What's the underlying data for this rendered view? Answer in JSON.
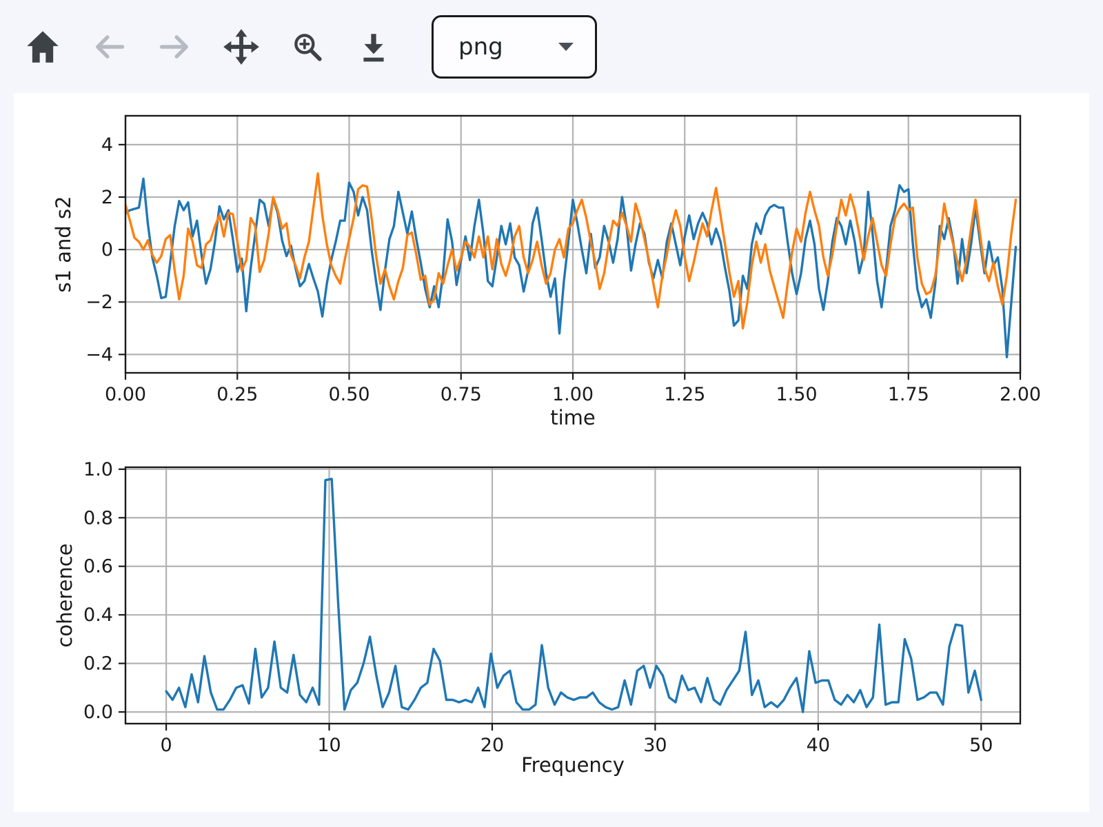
{
  "toolbar": {
    "buttons": [
      {
        "label": "Home",
        "icon": "home-icon",
        "disabled": false
      },
      {
        "label": "Back",
        "icon": "arrow-left-icon",
        "disabled": true
      },
      {
        "label": "Forward",
        "icon": "arrow-right-icon",
        "disabled": true
      },
      {
        "label": "Pan",
        "icon": "move-icon",
        "disabled": false
      },
      {
        "label": "Zoom",
        "icon": "zoom-in-icon",
        "disabled": false
      },
      {
        "label": "Download",
        "icon": "download-icon",
        "disabled": false
      }
    ],
    "format_select": {
      "value": "png"
    }
  },
  "colors": {
    "page_bg": "#f5f6fc",
    "figure_bg": "#ffffff",
    "grid": "#b3b3b3",
    "spine": "#1a1a1a",
    "text": "#1a1a1a",
    "s1": "#1f77b4",
    "s2": "#ff7f0e",
    "coherence": "#1f77b4",
    "icon": "#3d4246",
    "icon_disabled": "#b6bbc2"
  },
  "chart_data": [
    {
      "type": "line",
      "name": "signals-chart",
      "title": "",
      "xlabel": "time",
      "ylabel": "s1 and s2",
      "xlim": [
        0,
        2
      ],
      "ylim": [
        -4.7,
        5.1
      ],
      "grid": true,
      "xticks": [
        {
          "v": 0,
          "label": "0.00"
        },
        {
          "v": 0.25,
          "label": "0.25"
        },
        {
          "v": 0.5,
          "label": "0.50"
        },
        {
          "v": 0.75,
          "label": "0.75"
        },
        {
          "v": 1.0,
          "label": "1.00"
        },
        {
          "v": 1.25,
          "label": "1.25"
        },
        {
          "v": 1.5,
          "label": "1.50"
        },
        {
          "v": 1.75,
          "label": "1.75"
        },
        {
          "v": 2.0,
          "label": "2.00"
        }
      ],
      "yticks": [
        {
          "v": -4,
          "label": "−4"
        },
        {
          "v": -2,
          "label": "−2"
        },
        {
          "v": 0,
          "label": "0"
        },
        {
          "v": 2,
          "label": "2"
        },
        {
          "v": 4,
          "label": "4"
        }
      ],
      "series": [
        {
          "name": "s1",
          "color": "#1f77b4",
          "x_start": 0,
          "dx": 0.01,
          "values": [
            1.4,
            1.5,
            1.55,
            1.6,
            2.7,
            1.0,
            -0.3,
            -1.0,
            -1.85,
            -1.8,
            -0.5,
            0.9,
            1.85,
            1.5,
            1.8,
            0.5,
            1.1,
            -0.2,
            -1.3,
            -0.75,
            0.3,
            1.65,
            1.15,
            1.5,
            0.4,
            -0.85,
            -0.35,
            -2.35,
            -0.7,
            0.6,
            1.9,
            1.75,
            0.9,
            1.95,
            1.4,
            0.35,
            -0.25,
            0.15,
            -0.7,
            -1.4,
            -1.2,
            -0.55,
            -1.1,
            -1.6,
            -2.55,
            -1.3,
            -0.4,
            0.3,
            1.1,
            1.1,
            2.55,
            2.2,
            1.3,
            2.0,
            1.5,
            0.0,
            -1.2,
            -2.3,
            -0.8,
            0.4,
            0.9,
            2.2,
            1.4,
            0.6,
            1.45,
            0.4,
            -0.5,
            -1.5,
            -2.2,
            -1.4,
            -2.2,
            -0.9,
            1.15,
            0.3,
            -1.35,
            -0.4,
            0.5,
            -0.4,
            0.9,
            1.9,
            0.6,
            -1.2,
            -1.4,
            -0.3,
            0.9,
            0.2,
            1.0,
            -0.3,
            -0.6,
            -1.6,
            -0.8,
            1.0,
            1.6,
            0.4,
            -0.9,
            -1.8,
            -1.1,
            -3.2,
            -1.2,
            0.3,
            1.9,
            1.0,
            0.0,
            -0.9,
            0.6,
            -0.7,
            -0.3,
            0.9,
            0.3,
            -0.5,
            0.4,
            2.0,
            0.9,
            -0.8,
            0.2,
            1.0,
            0.6,
            -0.5,
            -1.1,
            -0.4,
            -1.1,
            0.3,
            1.0,
            0.2,
            -0.6,
            0.5,
            1.3,
            0.4,
            1.0,
            1.4,
            1.0,
            0.2,
            0.8,
            0.3,
            -0.7,
            -1.6,
            -2.9,
            -2.7,
            -1.0,
            -1.5,
            0.2,
            1.0,
            0.6,
            1.3,
            1.6,
            1.7,
            1.6,
            1.6,
            0.3,
            -0.9,
            -1.7,
            -0.9,
            0.4,
            1.1,
            0.2,
            -1.5,
            -2.3,
            -1.2,
            0.3,
            1.2,
            0.9,
            0.2,
            1.1,
            0.3,
            -0.9,
            -0.2,
            2.2,
            0.6,
            -1.2,
            -2.2,
            -0.8,
            0.9,
            1.5,
            2.45,
            2.2,
            2.3,
            0.2,
            -1.5,
            -2.2,
            -1.9,
            -2.6,
            -1.3,
            0.9,
            0.4,
            1.2,
            0.3,
            -1.3,
            0.4,
            -0.9,
            0.2,
            1.6,
            0.3,
            -0.9,
            0.3,
            -0.6,
            -0.3,
            -1.5,
            -4.1,
            -2.0,
            0.1
          ]
        },
        {
          "name": "s2",
          "color": "#ff7f0e",
          "x_start": 0,
          "dx": 0.01,
          "values": [
            1.7,
            1.1,
            0.45,
            0.3,
            0.0,
            0.35,
            -0.2,
            -0.5,
            -0.25,
            0.4,
            0.55,
            -0.8,
            -1.9,
            -1.0,
            0.8,
            0.3,
            -0.6,
            -0.7,
            0.2,
            0.35,
            0.9,
            1.3,
            0.5,
            1.4,
            1.35,
            0.3,
            -0.8,
            -0.4,
            1.2,
            0.9,
            -0.85,
            -0.4,
            0.6,
            2.0,
            1.5,
            0.8,
            1.0,
            -0.2,
            -0.6,
            -1.1,
            -0.3,
            0.3,
            1.6,
            2.9,
            1.3,
            0.2,
            -0.6,
            -1.0,
            -1.3,
            -0.4,
            0.4,
            1.2,
            2.3,
            2.45,
            2.4,
            1.2,
            -0.2,
            -1.3,
            -0.75,
            -1.4,
            -1.9,
            -1.2,
            -0.7,
            0.55,
            0.65,
            -0.2,
            -1.15,
            -1.0,
            -2.1,
            -1.9,
            -0.9,
            -1.3,
            -0.6,
            0.0,
            -0.8,
            -0.3,
            0.3,
            0.1,
            -0.3,
            0.5,
            -0.3,
            0.5,
            -0.75,
            0.4,
            -0.55,
            -1.0,
            -0.4,
            0.5,
            0.9,
            -0.3,
            -0.9,
            -0.4,
            0.3,
            -0.6,
            -1.3,
            -0.9,
            0.0,
            0.4,
            -0.3,
            0.8,
            1.0,
            1.5,
            1.9,
            1.2,
            0.3,
            -0.5,
            -1.5,
            -0.9,
            0.2,
            1.1,
            0.9,
            1.4,
            0.9,
            0.3,
            1.75,
            1.2,
            0.4,
            -0.4,
            -1.3,
            -2.2,
            -1.0,
            -0.2,
            0.8,
            1.5,
            0.9,
            -0.3,
            -1.2,
            -0.5,
            0.3,
            1.0,
            0.5,
            1.5,
            2.35,
            1.3,
            0.2,
            -0.9,
            -1.8,
            -1.2,
            -3.0,
            -2.0,
            -0.6,
            0.3,
            -0.5,
            0.2,
            -0.8,
            -1.4,
            -2.0,
            -2.6,
            -1.3,
            -0.1,
            0.8,
            0.3,
            1.4,
            2.2,
            1.5,
            0.9,
            -0.3,
            -1.0,
            -0.2,
            0.9,
            1.9,
            1.3,
            2.1,
            1.5,
            0.6,
            -0.4,
            0.5,
            1.2,
            0.3,
            -0.6,
            -1.0,
            0.2,
            1.2,
            1.55,
            1.75,
            1.5,
            1.6,
            -0.3,
            -1.3,
            -1.7,
            -1.6,
            -1.0,
            0.3,
            1.75,
            0.9,
            0.2,
            -0.5,
            -1.2,
            -0.4,
            0.8,
            1.9,
            0.6,
            -0.7,
            -1.2,
            -0.5,
            -1.4,
            -2.1,
            -1.0,
            0.6,
            1.9
          ]
        }
      ]
    },
    {
      "type": "line",
      "name": "coherence-chart",
      "title": "",
      "xlabel": "Frequency",
      "ylabel": "coherence",
      "xlim": [
        -2.5,
        52.4
      ],
      "ylim": [
        -0.048,
        1.008
      ],
      "grid": true,
      "xticks": [
        {
          "v": 0,
          "label": "0"
        },
        {
          "v": 10,
          "label": "10"
        },
        {
          "v": 20,
          "label": "20"
        },
        {
          "v": 30,
          "label": "30"
        },
        {
          "v": 40,
          "label": "40"
        },
        {
          "v": 50,
          "label": "50"
        }
      ],
      "yticks": [
        {
          "v": 0.0,
          "label": "0.0"
        },
        {
          "v": 0.2,
          "label": "0.2"
        },
        {
          "v": 0.4,
          "label": "0.4"
        },
        {
          "v": 0.6,
          "label": "0.6"
        },
        {
          "v": 0.8,
          "label": "0.8"
        },
        {
          "v": 1.0,
          "label": "1.0"
        }
      ],
      "series": [
        {
          "name": "coherence",
          "color": "#1f77b4",
          "x_start": 0,
          "dx": 0.390625,
          "values": [
            0.085,
            0.05,
            0.1,
            0.02,
            0.155,
            0.04,
            0.23,
            0.08,
            0.01,
            0.01,
            0.05,
            0.1,
            0.11,
            0.035,
            0.26,
            0.06,
            0.1,
            0.29,
            0.1,
            0.08,
            0.235,
            0.07,
            0.04,
            0.1,
            0.03,
            0.955,
            0.96,
            0.45,
            0.01,
            0.09,
            0.12,
            0.2,
            0.31,
            0.15,
            0.02,
            0.08,
            0.19,
            0.02,
            0.01,
            0.05,
            0.1,
            0.12,
            0.26,
            0.21,
            0.05,
            0.05,
            0.04,
            0.05,
            0.04,
            0.1,
            0.02,
            0.24,
            0.1,
            0.15,
            0.17,
            0.04,
            0.01,
            0.01,
            0.03,
            0.275,
            0.1,
            0.03,
            0.08,
            0.06,
            0.05,
            0.06,
            0.06,
            0.08,
            0.04,
            0.02,
            0.01,
            0.02,
            0.13,
            0.03,
            0.17,
            0.19,
            0.1,
            0.19,
            0.15,
            0.06,
            0.04,
            0.15,
            0.09,
            0.1,
            0.04,
            0.14,
            0.05,
            0.03,
            0.09,
            0.13,
            0.17,
            0.33,
            0.07,
            0.13,
            0.02,
            0.04,
            0.02,
            0.05,
            0.1,
            0.14,
            0.0,
            0.25,
            0.12,
            0.13,
            0.13,
            0.05,
            0.03,
            0.07,
            0.04,
            0.09,
            0.02,
            0.06,
            0.36,
            0.03,
            0.04,
            0.04,
            0.3,
            0.22,
            0.05,
            0.06,
            0.08,
            0.08,
            0.03,
            0.27,
            0.36,
            0.355,
            0.08,
            0.17,
            0.05
          ]
        }
      ]
    }
  ]
}
